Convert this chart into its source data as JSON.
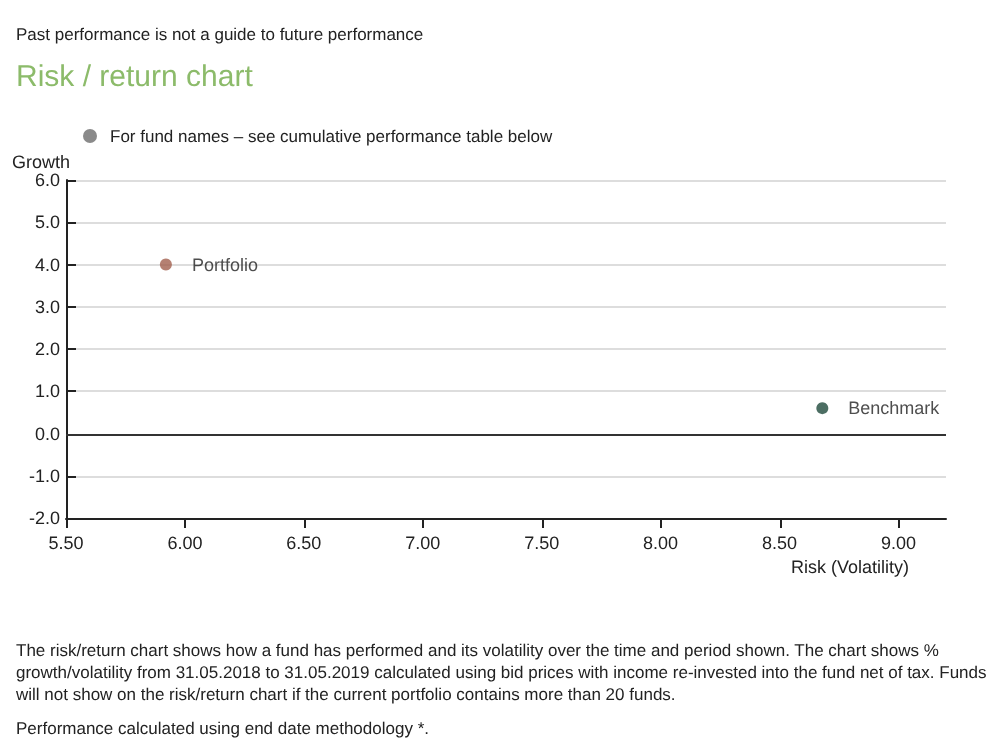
{
  "chart_data": {
    "type": "scatter",
    "title": "Risk / return chart",
    "xlabel": "Risk (Volatility)",
    "ylabel": "Growth",
    "annotations": [
      "Past performance is not a guide to future performance",
      "For fund names – see cumulative performance table below",
      "The risk/return chart shows how a fund has performed and its volatility over the time and period shown. The chart shows % growth/volatility from 31.05.2018 to 31.05.2019 calculated using bid prices with income re-invested into the fund net of tax. Funds will not show on the risk/return chart if the current portfolio contains more than 20 funds.",
      "Performance calculated using end date methodology *."
    ],
    "series": [
      {
        "name": "Portfolio",
        "color": "#a3604f",
        "x": [
          5.92
        ],
        "values": [
          4.0
        ]
      },
      {
        "name": "Benchmark",
        "color": "#1f4a3c",
        "x": [
          8.68
        ],
        "values": [
          0.6
        ]
      }
    ],
    "xlim": [
      5.5,
      9.2
    ],
    "xticks": [
      {
        "value": 5.5,
        "label": "5.50"
      },
      {
        "value": 6,
        "label": "6.00"
      },
      {
        "value": 6.5,
        "label": "6.50"
      },
      {
        "value": 7,
        "label": "7.00"
      },
      {
        "value": 7.5,
        "label": "7.50"
      },
      {
        "value": 8,
        "label": "8.00"
      },
      {
        "value": 8.5,
        "label": "8.50"
      },
      {
        "value": 9,
        "label": "9.00"
      }
    ],
    "ylim": [
      -2,
      6
    ],
    "yticks": [
      {
        "value": -2,
        "label": "-2.0"
      },
      {
        "value": -1,
        "label": "-1.0"
      },
      {
        "value": 0,
        "label": "0.0"
      },
      {
        "value": 1,
        "label": "1.0"
      },
      {
        "value": 2,
        "label": "2.0"
      },
      {
        "value": 3,
        "label": "3.0"
      },
      {
        "value": 4,
        "label": "4.0"
      },
      {
        "value": 5,
        "label": "5.0"
      },
      {
        "value": 6,
        "label": "6.0"
      }
    ],
    "ref_lines": [
      {
        "axis": "y",
        "value": 0,
        "color": "#333333",
        "line_style": "solid"
      }
    ],
    "grid": "y",
    "legend": false,
    "marker": "circle"
  }
}
